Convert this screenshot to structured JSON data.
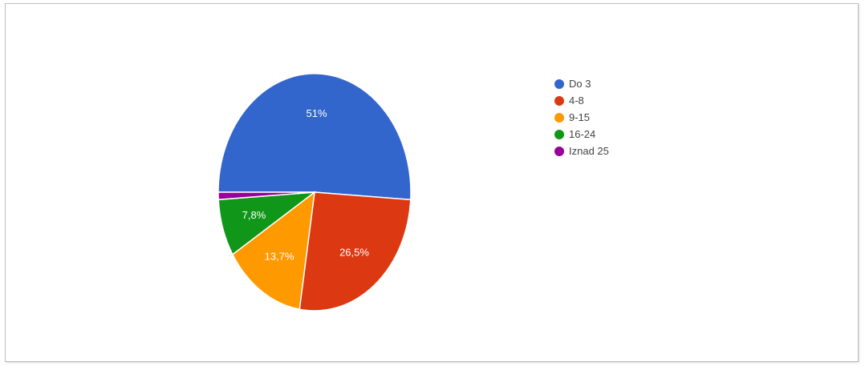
{
  "chart_data": {
    "type": "pie",
    "slices": [
      {
        "label": "Do 3",
        "value": 51,
        "display": "51%",
        "color": "#3366cc"
      },
      {
        "label": "4-8",
        "value": 26.5,
        "display": "26,5%",
        "color": "#dc3912"
      },
      {
        "label": "9-15",
        "value": 13.7,
        "display": "13,7%",
        "color": "#ff9900"
      },
      {
        "label": "16-24",
        "value": 7.8,
        "display": "7,8%",
        "color": "#109618"
      },
      {
        "label": "Iznad 25",
        "value": 1.0,
        "display": "",
        "color": "#990099"
      }
    ],
    "start_angle_deg": 180,
    "direction": "clockwise",
    "legend_position": "right"
  }
}
